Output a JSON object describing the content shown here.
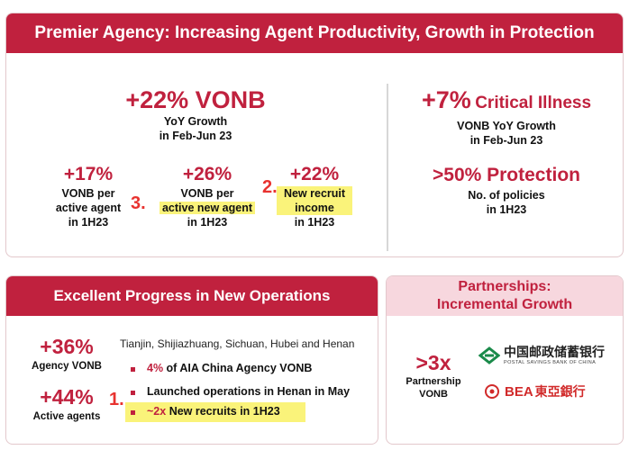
{
  "premier": {
    "title": "Premier Agency: Increasing Agent Productivity, Growth in Protection",
    "vonb": {
      "value": "+22% VONB",
      "line1": "YoY Growth",
      "line2": "in Feb-Jun 23"
    },
    "metrics": [
      {
        "value": "+17%",
        "lines": [
          "VONB per",
          "active agent",
          "in 1H23"
        ]
      },
      {
        "value": "+26%",
        "lines": [
          "VONB per",
          "active new agent",
          "in 1H23"
        ],
        "marker": "3."
      },
      {
        "value": "+22%",
        "lines": [
          "New recruit",
          "income",
          "in 1H23"
        ],
        "marker": "2."
      }
    ],
    "critical": {
      "value": "+7%",
      "label": "Critical Illness",
      "line1": "VONB YoY Growth",
      "line2": "in Feb-Jun 23"
    },
    "protection": {
      "value": ">50% Protection",
      "line1": "No. of policies",
      "line2": "in 1H23"
    }
  },
  "operations": {
    "title": "Excellent Progress in New Operations",
    "stat1": {
      "value": "+36%",
      "label": "Agency VONB"
    },
    "stat2": {
      "value": "+44%",
      "label": "Active agents"
    },
    "cities": "Tianjin, Shijiazhuang, Sichuan, Hubei and Henan",
    "bullets": [
      {
        "highlight": "4%",
        "text": " of AIA China Agency VONB"
      },
      {
        "highlight": "",
        "text": "Launched operations in Henan in May"
      },
      {
        "highlight": "~2x",
        "text": " New recruits in 1H23",
        "marker": "1."
      }
    ]
  },
  "partnerships": {
    "title_line1": "Partnerships:",
    "title_line2": "Incremental Growth",
    "value": ">3x",
    "label_line1": "Partnership",
    "label_line2": "VONB",
    "psbc": {
      "cn": "中国邮政储蓄银行",
      "en": "POSTAL SAVINGS BANK OF CHINA"
    },
    "bea": {
      "en": "BEA",
      "cn": "東亞銀行"
    }
  }
}
